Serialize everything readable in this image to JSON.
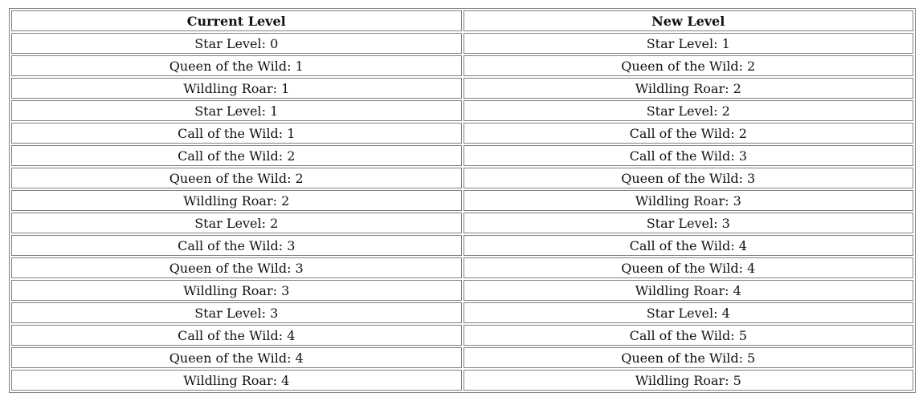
{
  "table": {
    "headers": [
      "Current Level",
      "New Level"
    ],
    "rows": [
      [
        "Star Level: 0",
        "Star Level: 1"
      ],
      [
        "Queen of the Wild: 1",
        "Queen of the Wild: 2"
      ],
      [
        "Wildling Roar: 1",
        "Wildling Roar: 2"
      ],
      [
        "Star Level: 1",
        "Star Level: 2"
      ],
      [
        "Call of the Wild: 1",
        "Call of the Wild: 2"
      ],
      [
        "Call of the Wild: 2",
        "Call of the Wild: 3"
      ],
      [
        "Queen of the Wild: 2",
        "Queen of the Wild: 3"
      ],
      [
        "Wildling Roar: 2",
        "Wildling Roar: 3"
      ],
      [
        "Star Level: 2",
        "Star Level: 3"
      ],
      [
        "Call of the Wild: 3",
        "Call of the Wild: 4"
      ],
      [
        "Queen of the Wild: 3",
        "Queen of the Wild: 4"
      ],
      [
        "Wildling Roar: 3",
        "Wildling Roar: 4"
      ],
      [
        "Star Level: 3",
        "Star Level: 4"
      ],
      [
        "Call of the Wild: 4",
        "Call of the Wild: 5"
      ],
      [
        "Queen of the Wild: 4",
        "Queen of the Wild: 5"
      ],
      [
        "Wildling Roar: 4",
        "Wildling Roar: 5"
      ]
    ]
  }
}
